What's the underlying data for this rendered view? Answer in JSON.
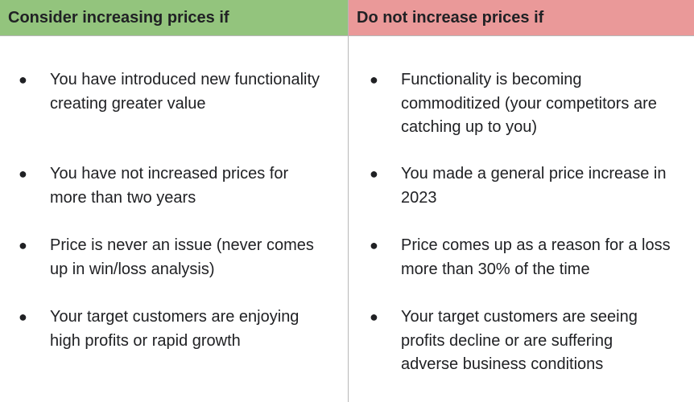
{
  "left": {
    "header": "Consider increasing prices if",
    "items": [
      {
        "bullet": "●",
        "lines": [
          "You have introduced new functionality",
          "creating greater value"
        ]
      },
      {
        "bullet": "●",
        "lines": [
          "You have not increased prices for",
          "more than two years"
        ]
      },
      {
        "bullet": "●",
        "lines": [
          "Price is never an issue (never comes",
          "up in win/loss analysis)"
        ]
      },
      {
        "bullet": "●",
        "lines": [
          "Your target customers are enjoying",
          "high profits or rapid growth"
        ]
      }
    ]
  },
  "right": {
    "header": "Do not increase prices if",
    "items": [
      {
        "bullet": "●",
        "lines": [
          "Functionality is becoming",
          "commoditized (your competitors are",
          "catching up to you)"
        ]
      },
      {
        "bullet": "●",
        "lines": [
          "You made a general price increase in",
          "2023"
        ]
      },
      {
        "bullet": "●",
        "lines": [
          "Price comes up as a reason for a loss",
          "more than 30% of the time"
        ]
      },
      {
        "bullet": "●",
        "lines": [
          "Your target customers are seeing",
          "profits decline or are suffering",
          "adverse business conditions"
        ]
      }
    ]
  },
  "colors": {
    "left_header_bg": "#93c47d",
    "right_header_bg": "#ea9999",
    "border": "#b7b7b7"
  }
}
